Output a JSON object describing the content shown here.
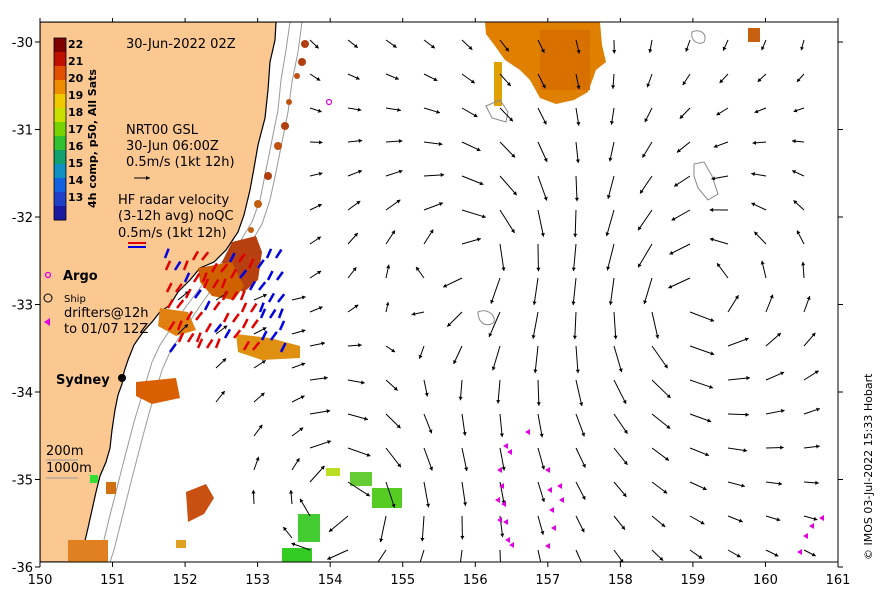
{
  "map": {
    "timestamp": "30-Jun-2022 02Z",
    "x_ticks": [
      "150",
      "151",
      "152",
      "153",
      "154",
      "155",
      "156",
      "157",
      "158",
      "159",
      "160",
      "161"
    ],
    "y_ticks": [
      "-30",
      "-31",
      "-32",
      "-33",
      "-34",
      "-35",
      "-36"
    ],
    "credit": "© IMOS 03-Jul-2022 15:33 Hobart",
    "colors": {
      "land": "#fcc892",
      "ocean": "#ffffff",
      "coast": "#000000",
      "isobath": "#999999"
    }
  },
  "colorbar": {
    "label": "4h comp, p50, All Sats",
    "ticks": [
      "22",
      "21",
      "20",
      "19",
      "18",
      "17",
      "16",
      "15",
      "14",
      "13"
    ],
    "colors": [
      "#800000",
      "#c01000",
      "#e05000",
      "#f08c00",
      "#f0c800",
      "#c8e000",
      "#78d200",
      "#30c030",
      "#10a070",
      "#1090c0",
      "#1060e0",
      "#2040c8",
      "#1a1aa0"
    ]
  },
  "legend": {
    "gsl_lines": [
      "NRT00 GSL",
      "30-Jun 06:00Z",
      "0.5m/s (1kt 12h)"
    ],
    "radar_lines": [
      "HF radar velocity",
      "(3-12h avg) noQC",
      "0.5m/s (1kt 12h)"
    ],
    "argo": "Argo",
    "ship": "Ship",
    "drifters_lines": [
      "drifters@12h",
      "to 01/07 12Z"
    ],
    "isobath_200": "200m",
    "isobath_1000": "1000m"
  },
  "places": {
    "sydney": "Sydney"
  }
}
